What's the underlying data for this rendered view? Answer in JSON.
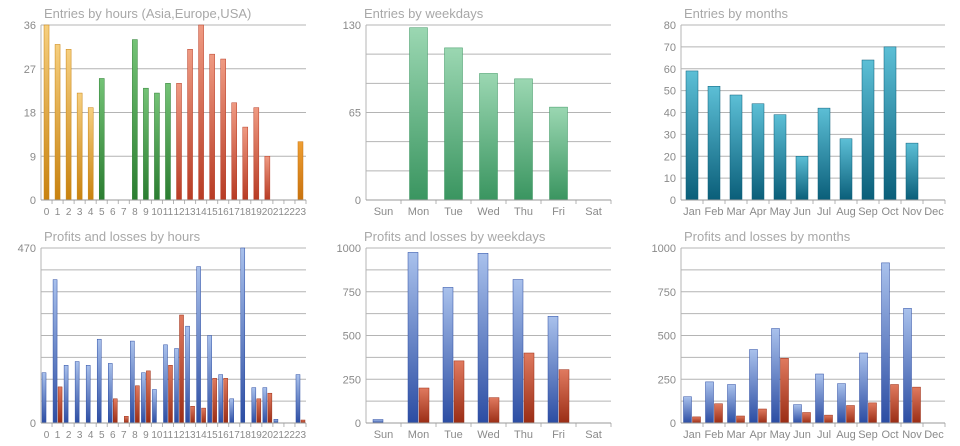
{
  "colors": {
    "grid": "#b4b4b4",
    "title": "#a8a8a8",
    "tick": "#8a8a8a",
    "orange": [
      "#f6cf7f",
      "#c8820f"
    ],
    "green": [
      "#74c376",
      "#2b7d31"
    ],
    "red": [
      "#ef9a82",
      "#b73b24"
    ],
    "darkorange": [
      "#ef9f33",
      "#c8720e"
    ],
    "mint": [
      "#9bd7b2",
      "#3a9560"
    ],
    "teal": [
      "#5cbfd6",
      "#0a5e79"
    ],
    "blue": [
      "#a9c1ec",
      "#2c4da3"
    ],
    "rust": [
      "#e07a5f",
      "#9a2d15"
    ]
  },
  "chart_data": [
    {
      "type": "bar",
      "title": "Entries by hours (Asia,Europe,USA)",
      "categories": [
        "0",
        "1",
        "2",
        "3",
        "4",
        "5",
        "6",
        "7",
        "8",
        "9",
        "10",
        "11",
        "12",
        "13",
        "14",
        "15",
        "16",
        "17",
        "18",
        "19",
        "20",
        "21",
        "22",
        "23"
      ],
      "values": [
        36,
        32,
        31,
        22,
        19,
        25,
        0,
        0,
        33,
        23,
        22,
        24,
        24,
        31,
        36,
        30,
        29,
        20,
        15,
        19,
        9,
        0,
        0,
        12
      ],
      "bar_colors": [
        "orange",
        "orange",
        "orange",
        "orange",
        "orange",
        "green",
        "green",
        "green",
        "green",
        "green",
        "green",
        "green",
        "red",
        "red",
        "red",
        "red",
        "red",
        "red",
        "red",
        "red",
        "red",
        "red",
        "red",
        "darkorange"
      ],
      "ylim": [
        0,
        36
      ],
      "yticks": [
        "0",
        "9",
        "18",
        "27",
        "36"
      ],
      "xlabel": "",
      "ylabel": ""
    },
    {
      "type": "bar",
      "title": "Entries by weekdays",
      "categories": [
        "Sun",
        "Mon",
        "Tue",
        "Wed",
        "Thu",
        "Fri",
        "Sat"
      ],
      "values": [
        0,
        128,
        113,
        94,
        90,
        69,
        0
      ],
      "bar_colors": [
        "mint"
      ],
      "ylim": [
        0,
        130
      ],
      "yticks": [
        "0",
        "65",
        "130"
      ],
      "xlabel": "",
      "ylabel": ""
    },
    {
      "type": "bar",
      "title": "Entries by months",
      "categories": [
        "Jan",
        "Feb",
        "Mar",
        "Apr",
        "May",
        "Jun",
        "Jul",
        "Aug",
        "Sep",
        "Oct",
        "Nov",
        "Dec"
      ],
      "values": [
        59,
        52,
        48,
        44,
        39,
        20,
        42,
        28,
        64,
        70,
        26,
        0
      ],
      "bar_colors": [
        "teal"
      ],
      "ylim": [
        0,
        80
      ],
      "yticks": [
        "0",
        "10",
        "20",
        "30",
        "40",
        "50",
        "60",
        "70",
        "80"
      ],
      "xlabel": "",
      "ylabel": ""
    },
    {
      "type": "bar",
      "title": "Profits and losses by hours",
      "categories": [
        "0",
        "1",
        "2",
        "3",
        "4",
        "5",
        "6",
        "7",
        "8",
        "9",
        "10",
        "11",
        "12",
        "13",
        "14",
        "15",
        "16",
        "17",
        "18",
        "19",
        "20",
        "21",
        "22",
        "23"
      ],
      "series": [
        {
          "name": "Profits",
          "color": "blue",
          "values": [
            135,
            385,
            155,
            165,
            155,
            225,
            160,
            0,
            220,
            135,
            90,
            210,
            200,
            260,
            420,
            235,
            130,
            65,
            470,
            95,
            95,
            10,
            0,
            130
          ]
        },
        {
          "name": "Losses",
          "color": "rust",
          "values": [
            0,
            97,
            0,
            0,
            0,
            0,
            65,
            18,
            100,
            140,
            0,
            155,
            290,
            45,
            40,
            120,
            120,
            0,
            0,
            65,
            80,
            0,
            0,
            8
          ]
        }
      ],
      "ylim": [
        0,
        470
      ],
      "yticks": [
        "0",
        "470"
      ],
      "xlabel": "",
      "ylabel": ""
    },
    {
      "type": "bar",
      "title": "Profits and losses by weekdays",
      "categories": [
        "Sun",
        "Mon",
        "Tue",
        "Wed",
        "Thu",
        "Fri",
        "Sat"
      ],
      "series": [
        {
          "name": "Profits",
          "color": "blue",
          "values": [
            20,
            975,
            775,
            970,
            820,
            610,
            0
          ]
        },
        {
          "name": "Losses",
          "color": "rust",
          "values": [
            0,
            200,
            355,
            145,
            400,
            305,
            0
          ]
        }
      ],
      "ylim": [
        0,
        1000
      ],
      "yticks": [
        "0",
        "250",
        "500",
        "750",
        "1000"
      ],
      "xlabel": "",
      "ylabel": ""
    },
    {
      "type": "bar",
      "title": "Profits and losses by months",
      "categories": [
        "Jan",
        "Feb",
        "Mar",
        "Apr",
        "May",
        "Jun",
        "Jul",
        "Aug",
        "Sep",
        "Oct",
        "Nov",
        "Dec"
      ],
      "series": [
        {
          "name": "Profits",
          "color": "blue",
          "values": [
            150,
            235,
            220,
            420,
            540,
            105,
            280,
            225,
            400,
            915,
            655,
            0
          ]
        },
        {
          "name": "Losses",
          "color": "rust",
          "values": [
            35,
            110,
            40,
            80,
            370,
            60,
            45,
            100,
            115,
            220,
            205,
            0
          ]
        }
      ],
      "ylim": [
        0,
        1000
      ],
      "yticks": [
        "0",
        "250",
        "500",
        "750",
        "1000"
      ],
      "xlabel": "",
      "ylabel": ""
    }
  ]
}
